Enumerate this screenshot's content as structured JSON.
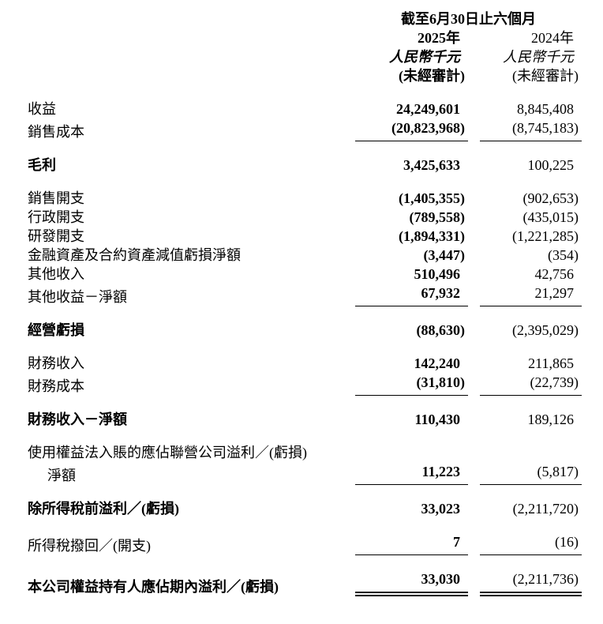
{
  "page": {
    "background_color": "#ffffff",
    "text_color": "#000000"
  },
  "header": {
    "period_title": "截至6月30日止六個月",
    "columns": [
      {
        "year": "2025年",
        "currency": "人民幣千元",
        "audit": "(未經審計)"
      },
      {
        "year": "2024年",
        "currency": "人民幣千元",
        "audit": "(未經審計)"
      }
    ]
  },
  "statement": {
    "rows": [
      {
        "label": "收益",
        "v2025": "24,249,601",
        "v2024": "8,845,408"
      },
      {
        "label": "銷售成本",
        "v2025": "(20,823,968)",
        "v2024": "(8,745,183)",
        "rule": "single"
      },
      {
        "label": "毛利",
        "bold": true,
        "v2025": "3,425,633",
        "v2024": "100,225",
        "gap": true
      },
      {
        "label": "銷售開支",
        "v2025": "(1,405,355)",
        "v2024": "(902,653)",
        "gap": true
      },
      {
        "label": "行政開支",
        "v2025": "(789,558)",
        "v2024": "(435,015)"
      },
      {
        "label": "研發開支",
        "v2025": "(1,894,331)",
        "v2024": "(1,221,285)"
      },
      {
        "label": "金融資產及合約資產減值虧損淨額",
        "v2025": "(3,447)",
        "v2024": "(354)"
      },
      {
        "label": "其他收入",
        "v2025": "510,496",
        "v2024": "42,756"
      },
      {
        "label": "其他收益－淨額",
        "v2025": "67,932",
        "v2024": "21,297",
        "rule": "single"
      },
      {
        "label": "經營虧損",
        "bold": true,
        "v2025": "(88,630)",
        "v2024": "(2,395,029)",
        "gap": true
      },
      {
        "label": "財務收入",
        "v2025": "142,240",
        "v2024": "211,865",
        "gap": true
      },
      {
        "label": "財務成本",
        "v2025": "(31,810)",
        "v2024": "(22,739)",
        "rule": "single"
      },
      {
        "label": "財務收入－淨額",
        "bold": true,
        "v2025": "110,430",
        "v2024": "189,126",
        "gap": true
      },
      {
        "label": "使用權益法入賬的應佔聯營公司溢利／(虧損)",
        "v2025": "",
        "v2024": "",
        "gap": true
      },
      {
        "label": "淨額",
        "indent": true,
        "v2025": "11,223",
        "v2024": "(5,817)",
        "rule": "single"
      },
      {
        "label": "除所得稅前溢利／(虧損)",
        "bold": true,
        "v2025": "33,023",
        "v2024": "(2,211,720)",
        "gap": true
      },
      {
        "label": "所得稅撥回／(開支)",
        "v2025": "7",
        "v2024": "(16)",
        "rule": "single",
        "gap": true
      },
      {
        "label": "本公司權益持有人應佔期內溢利／(虧損)",
        "bold": true,
        "v2025": "33,030",
        "v2024": "(2,211,736)",
        "rule": "double",
        "gap": true
      }
    ]
  }
}
